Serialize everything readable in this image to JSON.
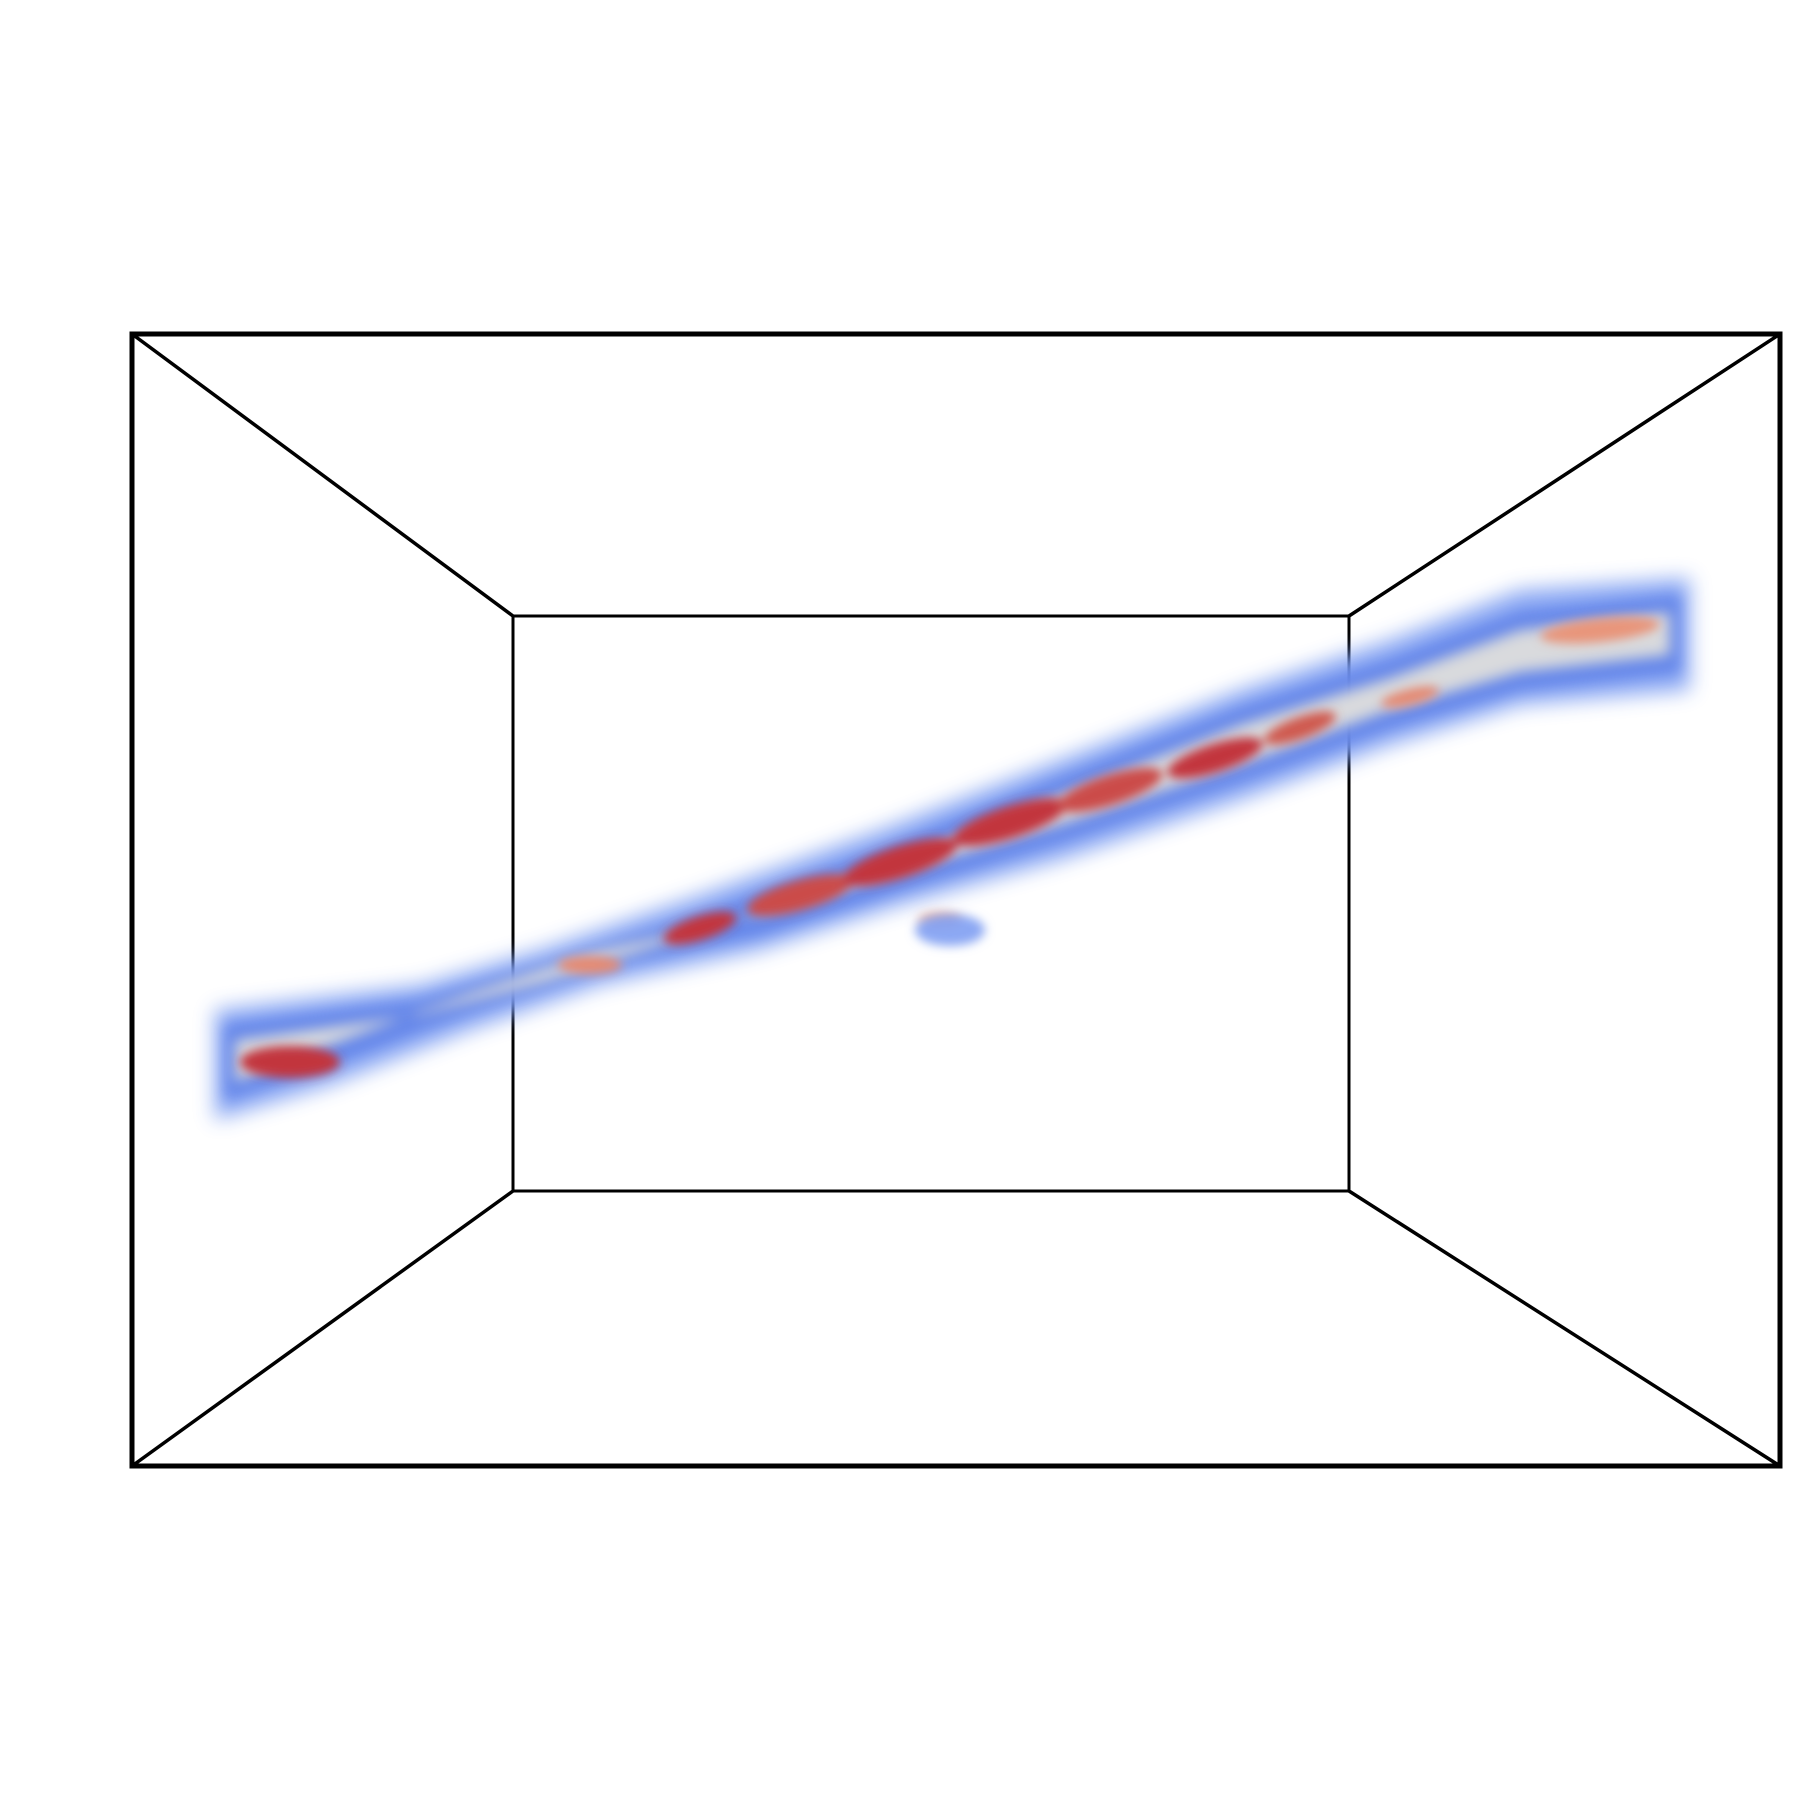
{
  "scene": {
    "description_kind": "3d-volume-render",
    "background_color": "#ffffff",
    "frame_color": "#000000",
    "colormap": {
      "name": "coolwarm",
      "low_color": "#5b7fe8",
      "mid_color": "#d9dadd",
      "high_color": "#c2343c"
    }
  }
}
